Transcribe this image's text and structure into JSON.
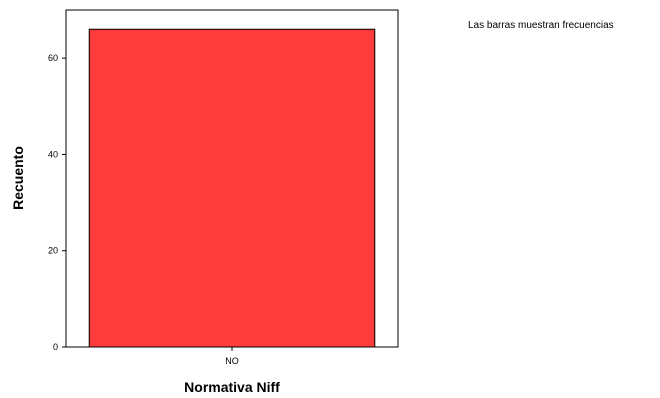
{
  "chart_data": {
    "type": "bar",
    "categories": [
      "NO"
    ],
    "values": [
      66
    ],
    "xlabel": "Normativa Niff",
    "ylabel": "Recuento",
    "ylim": [
      0,
      70
    ],
    "yticks": [
      0,
      20,
      40,
      60
    ],
    "bar_color": "#ff3b3b",
    "bar_stroke": "#000000",
    "frame_color": "#000000",
    "note": "Las barras muestran frecuencias",
    "grid": false,
    "legend": "none"
  }
}
